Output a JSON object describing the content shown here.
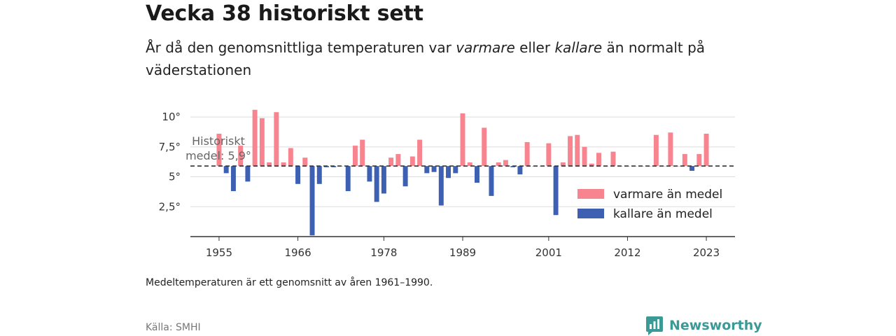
{
  "title": "Vecka 38 historiskt sett",
  "subtitle": {
    "part1": "År då den genomsnittliga temperaturen var ",
    "warm_word": "varmare",
    "part2": " eller ",
    "cold_word": "kallare",
    "part3": " än normalt på väderstationen"
  },
  "note": "Medeltemperaturen är ett genomsnitt av åren 1961–1990.",
  "source": "Källa: SMHI",
  "brand": "Newsworthy",
  "colors": {
    "warm": "#f7848f",
    "cold": "#3d60b3",
    "mean_line": "#333333",
    "grid": "#dddddd",
    "brand": "#3b9a96"
  },
  "chart_data": {
    "type": "bar",
    "baseline": 5.9,
    "mean_label_line1": "Historiskt",
    "mean_label_line2": "medel: 5,9°",
    "xlim": [
      1951,
      2027
    ],
    "ylim": [
      0,
      11
    ],
    "x_ticks": [
      1955,
      1966,
      1978,
      1989,
      2001,
      2012,
      2023
    ],
    "y_ticks": [
      {
        "value": 2.5,
        "label": "2,5°"
      },
      {
        "value": 5,
        "label": "5°"
      },
      {
        "value": 7.5,
        "label": "7,5°"
      },
      {
        "value": 10,
        "label": "10°"
      }
    ],
    "legend": [
      {
        "label": "varmare än medel",
        "color": "#f7848f"
      },
      {
        "label": "kallare än medel",
        "color": "#3d60b3"
      }
    ],
    "x": [
      1955,
      1956,
      1957,
      1958,
      1959,
      1960,
      1961,
      1962,
      1963,
      1964,
      1965,
      1966,
      1967,
      1968,
      1969,
      1970,
      1971,
      1972,
      1973,
      1974,
      1975,
      1976,
      1977,
      1978,
      1979,
      1980,
      1981,
      1982,
      1983,
      1984,
      1985,
      1986,
      1987,
      1988,
      1989,
      1990,
      1991,
      1992,
      1993,
      1994,
      1995,
      1996,
      1997,
      1998,
      1999,
      2000,
      2001,
      2002,
      2003,
      2004,
      2005,
      2006,
      2007,
      2008,
      2009,
      2010,
      2011,
      2012,
      2013,
      2014,
      2015,
      2016,
      2017,
      2018,
      2019,
      2020,
      2021,
      2022,
      2023
    ],
    "values": [
      8.6,
      5.3,
      3.8,
      7.6,
      4.6,
      10.6,
      9.9,
      6.2,
      10.4,
      6.2,
      7.4,
      4.4,
      6.6,
      0.1,
      4.4,
      5.8,
      5.8,
      5.9,
      3.8,
      7.6,
      8.1,
      4.6,
      2.9,
      3.6,
      6.6,
      6.9,
      4.2,
      6.7,
      8.1,
      5.3,
      5.4,
      2.6,
      4.9,
      5.3,
      10.3,
      6.2,
      4.5,
      9.1,
      3.4,
      6.2,
      6.4,
      5.8,
      5.2,
      7.9,
      5.9,
      5.9,
      7.8,
      1.8,
      6.2,
      8.4,
      8.5,
      7.5,
      6.1,
      7.0,
      5.9,
      7.1,
      5.9,
      5.9,
      5.9,
      5.9,
      5.9,
      8.5,
      5.9,
      8.7,
      5.9,
      6.9,
      5.5,
      6.9,
      8.6
    ]
  }
}
